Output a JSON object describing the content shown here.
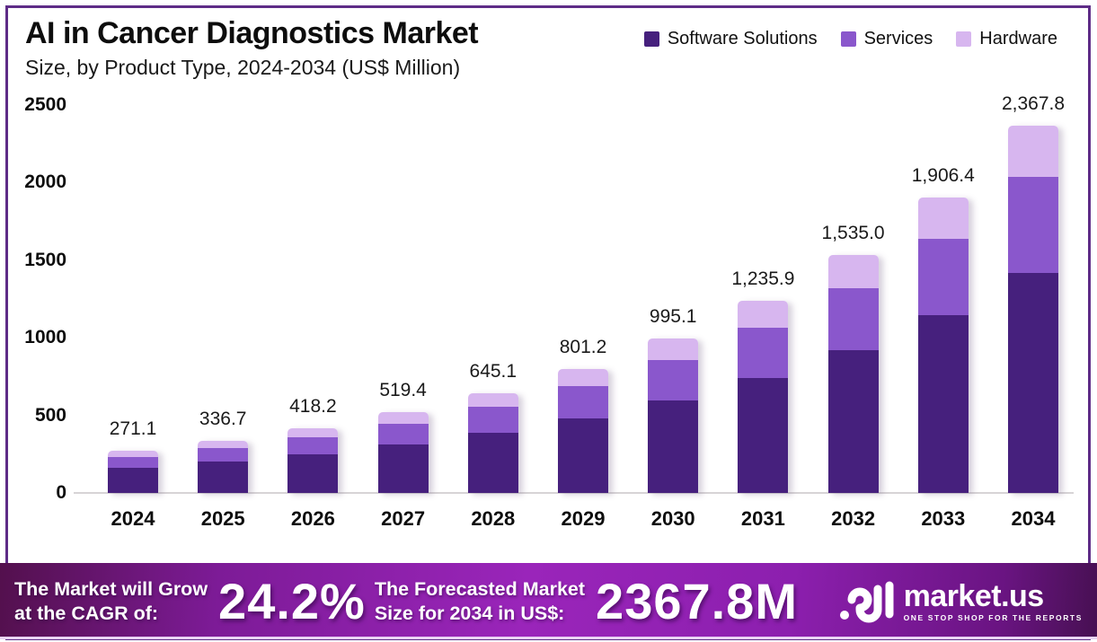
{
  "header": {
    "title": "AI in Cancer Diagnostics Market",
    "subtitle": "Size, by Product Type, 2024-2034 (US$ Million)"
  },
  "legend": [
    {
      "label": "Software Solutions",
      "color": "#46207d"
    },
    {
      "label": "Services",
      "color": "#8a57cc"
    },
    {
      "label": "Hardware",
      "color": "#d7b6ef"
    }
  ],
  "chart_data": {
    "type": "bar",
    "stacked": true,
    "title": "AI in Cancer Diagnostics Market Size, by Product Type, 2024-2034 (US$ Million)",
    "xlabel": "",
    "ylabel": "US$ Million",
    "ylim": [
      0,
      2500
    ],
    "yticks": [
      0,
      500,
      1000,
      1500,
      2000,
      2500
    ],
    "grid": false,
    "legend_position": "top-right",
    "categories": [
      "2024",
      "2025",
      "2026",
      "2027",
      "2028",
      "2029",
      "2030",
      "2031",
      "2032",
      "2033",
      "2034"
    ],
    "series": [
      {
        "key": "software",
        "name": "Software Solutions",
        "color": "#46207d",
        "values": [
          162.7,
          202.0,
          250.9,
          311.6,
          387.1,
          480.7,
          597.1,
          741.5,
          921.0,
          1143.8,
          1420.7
        ]
      },
      {
        "key": "services",
        "name": "Services",
        "color": "#8a57cc",
        "values": [
          70.5,
          87.5,
          108.7,
          135.0,
          167.7,
          208.3,
          258.7,
          321.3,
          399.1,
          495.7,
          615.6
        ]
      },
      {
        "key": "hardware",
        "name": "Hardware",
        "color": "#d7b6ef",
        "values": [
          37.9,
          47.2,
          58.6,
          72.8,
          90.3,
          112.2,
          139.3,
          173.1,
          214.9,
          266.9,
          331.5
        ]
      }
    ],
    "totals": [
      271.1,
      336.7,
      418.2,
      519.4,
      645.1,
      801.2,
      995.1,
      1235.9,
      1535.0,
      1906.4,
      2367.8
    ],
    "total_labels": [
      "271.1",
      "336.7",
      "418.2",
      "519.4",
      "645.1",
      "801.2",
      "995.1",
      "1,235.9",
      "1,535.0",
      "1,906.4",
      "2,367.8"
    ]
  },
  "banner": {
    "cagr_label_line1": "The Market will Grow",
    "cagr_label_line2": "at the CAGR of:",
    "cagr_value": "24.2%",
    "forecast_label_line1": "The Forecasted Market",
    "forecast_label_line2": "Size for 2034 in US$:",
    "forecast_value": "2367.8M",
    "logo_text": "market.us",
    "logo_tagline": "ONE STOP SHOP FOR THE REPORTS"
  },
  "colors": {
    "frame_border": "#5e2c87",
    "software": "#46207d",
    "services": "#8a57cc",
    "hardware": "#d7b6ef",
    "banner_center": "#9a25ba",
    "banner_edge": "#4e0f4a"
  }
}
